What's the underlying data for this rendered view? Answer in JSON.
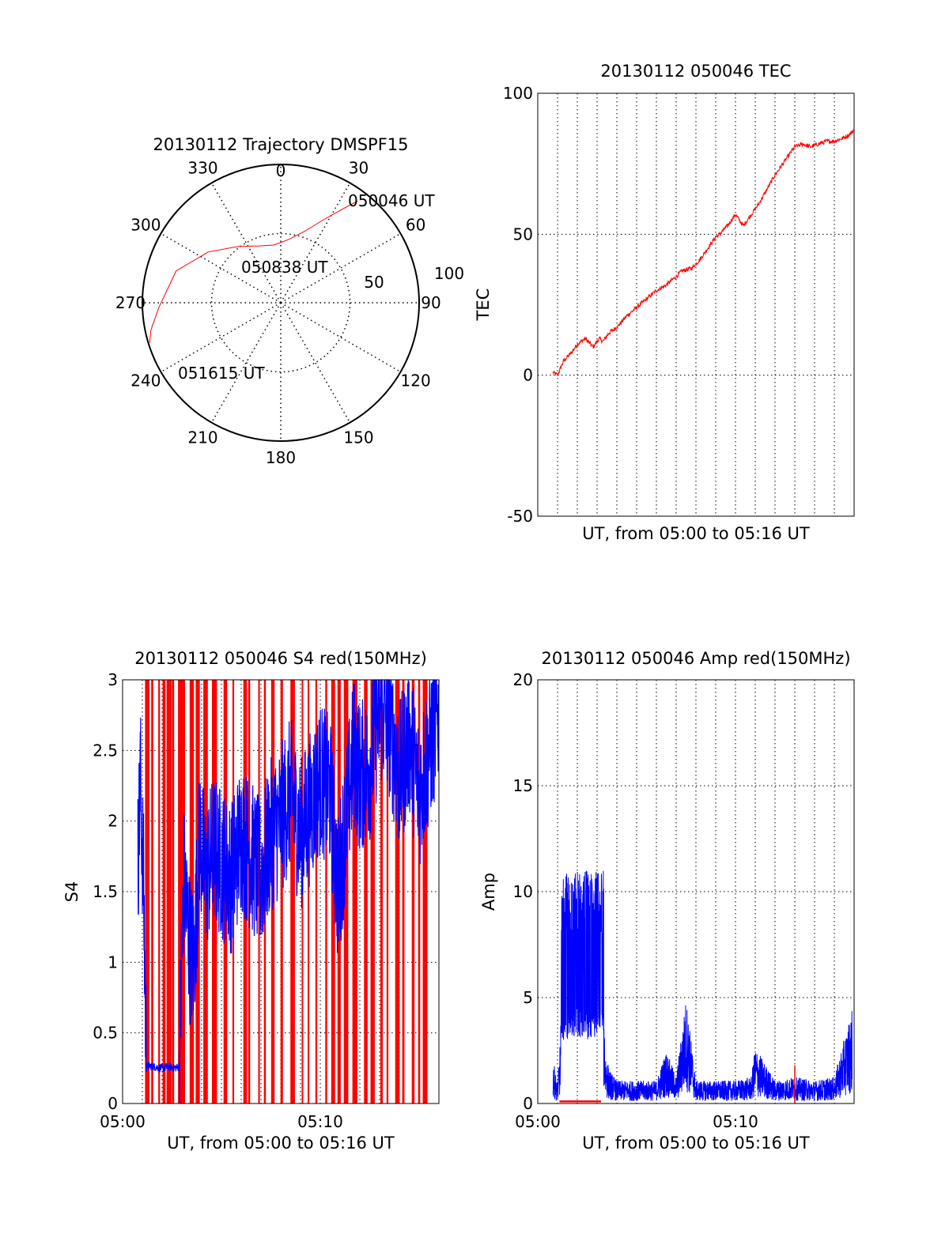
{
  "colors": {
    "red": "#ff0000",
    "blue": "#0000ff",
    "axis": "#000000",
    "grid": "#000000"
  },
  "chart_data": [
    {
      "id": "trajectory",
      "type": "polar",
      "title": "20130112 Trajectory DMSPF15",
      "azimuth_labels": [
        {
          "deg": 0,
          "label": "0"
        },
        {
          "deg": 30,
          "label": "30"
        },
        {
          "deg": 60,
          "label": "60"
        },
        {
          "deg": 90,
          "label": "90"
        },
        {
          "deg": 120,
          "label": "120"
        },
        {
          "deg": 150,
          "label": "150"
        },
        {
          "deg": 180,
          "label": "180"
        },
        {
          "deg": 210,
          "label": "210"
        },
        {
          "deg": 240,
          "label": "240"
        },
        {
          "deg": 270,
          "label": "270"
        },
        {
          "deg": 300,
          "label": "300"
        },
        {
          "deg": 330,
          "label": "330"
        }
      ],
      "radial_labels": [
        "50",
        "100"
      ],
      "radial_max": 100,
      "grid": true,
      "track": [
        [
          37,
          92
        ],
        [
          33,
          80
        ],
        [
          27,
          67
        ],
        [
          19,
          55
        ],
        [
          7,
          46
        ],
        [
          353,
          42
        ],
        [
          339,
          44
        ],
        [
          323,
          51
        ],
        [
          305,
          64
        ],
        [
          287,
          79
        ],
        [
          268,
          88
        ],
        [
          258,
          96
        ],
        [
          253,
          99
        ]
      ],
      "annotations": [
        "050046 UT",
        "050838 UT",
        "051615 UT"
      ]
    },
    {
      "id": "tec",
      "type": "line",
      "title": "20130112 050046 TEC",
      "xlabel": "UT, from 05:00 to 05:16 UT",
      "ylabel": "TEC",
      "xlim": [
        0,
        16
      ],
      "ylim": [
        -50,
        100
      ],
      "yticks": [
        "-50",
        "0",
        "50",
        "100"
      ],
      "xticks": [],
      "grid": true,
      "series": [
        {
          "color": "red",
          "x": [
            0.77,
            1.0,
            1.3,
            1.7,
            2.0,
            2.4,
            2.8,
            3.1,
            3.3,
            3.6,
            4.0,
            4.5,
            5.0,
            5.5,
            6.0,
            6.5,
            7.0,
            7.3,
            7.8,
            8.2,
            8.6,
            9.0,
            9.2,
            9.6,
            10.0,
            10.4,
            10.8,
            11.2,
            11.6,
            12.0,
            12.3,
            12.6,
            13.0,
            13.4,
            13.8,
            14.2,
            14.6,
            15.0,
            15.4,
            15.7,
            16.0
          ],
          "y": [
            1,
            0,
            5,
            8,
            11,
            13,
            10,
            13,
            12,
            15,
            17,
            21,
            24,
            27,
            30,
            32,
            35,
            37,
            38,
            41,
            45,
            49,
            50,
            53,
            57,
            53,
            57,
            61,
            66,
            71,
            74,
            77,
            81,
            82,
            81,
            82,
            83,
            83,
            84,
            85,
            87
          ]
        }
      ]
    },
    {
      "id": "s4",
      "type": "line",
      "title": "20130112 050046 S4 red(150MHz)",
      "xlabel": "UT, from 05:00 to 05:16 UT",
      "ylabel": "S4",
      "xlim": [
        0,
        16
      ],
      "ylim": [
        0,
        3
      ],
      "yticks": [
        "0",
        "0.5",
        "1",
        "1.5",
        "2",
        "2.5",
        "3"
      ],
      "xticks": [
        {
          "value": 0,
          "label": "05:00"
        },
        {
          "value": 10,
          "label": "05:10"
        }
      ],
      "grid": true,
      "series": [
        {
          "color": "blue",
          "x": [
            0.77,
            0.9,
            1.05,
            1.2,
            1.3,
            1.6,
            2.0,
            2.4,
            2.6,
            2.85,
            3.1,
            3.4,
            3.6,
            3.9,
            4.2,
            4.6,
            5.0,
            5.5,
            6.0,
            6.5,
            7.0,
            7.5,
            8.0,
            8.5,
            9.0,
            9.5,
            10.0,
            10.5,
            10.9,
            11.3,
            11.7,
            12.0,
            12.5,
            13.0,
            13.5,
            14.0,
            14.5,
            15.0,
            15.5,
            16.0
          ],
          "y": [
            1.7,
            2.3,
            1.6,
            0.25,
            0.27,
            0.26,
            0.25,
            0.26,
            0.25,
            0.26,
            1.6,
            1.1,
            1.0,
            1.9,
            1.6,
            1.8,
            1.7,
            1.6,
            1.9,
            1.75,
            1.6,
            1.9,
            2.0,
            2.2,
            1.9,
            2.1,
            2.3,
            2.2,
            1.5,
            2.0,
            2.5,
            2.3,
            2.4,
            2.8,
            2.7,
            2.3,
            2.6,
            2.2,
            2.5,
            2.8
          ]
        },
        {
          "color": "red",
          "x": [
            1.25,
            1.5,
            1.85,
            2.1,
            2.35,
            2.55,
            2.9,
            3.05,
            3.5,
            3.8,
            4.2,
            4.65,
            5.2,
            5.6,
            6.2,
            6.4,
            6.9,
            7.2,
            7.6,
            8.05,
            8.6,
            9.1,
            9.4,
            9.8,
            10.3,
            10.65,
            10.95,
            11.3,
            11.75,
            12.3,
            12.65,
            13.1,
            13.4,
            13.9,
            14.2,
            14.7,
            15.0,
            15.3
          ],
          "y": [
            3,
            3,
            3,
            3,
            3,
            3,
            3,
            3,
            3,
            3,
            3,
            3,
            3,
            3,
            3,
            3,
            3,
            3,
            3,
            3,
            3,
            3,
            3,
            3,
            3,
            3,
            3,
            3,
            3,
            3,
            3,
            3,
            3,
            3,
            3,
            3,
            3,
            3
          ]
        }
      ]
    },
    {
      "id": "amp",
      "type": "line",
      "title": "20130112 050046 Amp red(150MHz)",
      "xlabel": "UT, from 05:00 to 05:16 UT",
      "ylabel": "Amp",
      "xlim": [
        0,
        16
      ],
      "ylim": [
        0,
        20
      ],
      "yticks": [
        "0",
        "5",
        "10",
        "15",
        "20"
      ],
      "xticks": [
        {
          "value": 0,
          "label": "05:00"
        },
        {
          "value": 10,
          "label": "05:10"
        }
      ],
      "grid": true,
      "series": [
        {
          "color": "blue",
          "x": [
            0.77,
            1.0,
            1.15,
            1.3,
            1.6,
            2.0,
            2.4,
            2.8,
            3.2,
            3.4,
            3.6,
            4.0,
            5.0,
            6.0,
            6.5,
            7.0,
            7.5,
            8.0,
            9.0,
            10.0,
            10.8,
            11.0,
            12.0,
            13.0,
            14.0,
            15.0,
            15.9
          ],
          "y": [
            1.2,
            0.5,
            1.8,
            6.0,
            6.5,
            7.0,
            6.5,
            6.8,
            6.2,
            1.5,
            0.9,
            0.6,
            0.6,
            0.6,
            1.4,
            0.7,
            2.8,
            0.6,
            0.6,
            0.6,
            0.7,
            1.5,
            0.6,
            0.7,
            0.6,
            0.7,
            2.5
          ]
        },
        {
          "color": "red",
          "x": [
            1.1,
            2.0,
            3.2,
            13.0
          ],
          "y": [
            0.1,
            0.1,
            0.1,
            1.8
          ]
        }
      ]
    }
  ]
}
